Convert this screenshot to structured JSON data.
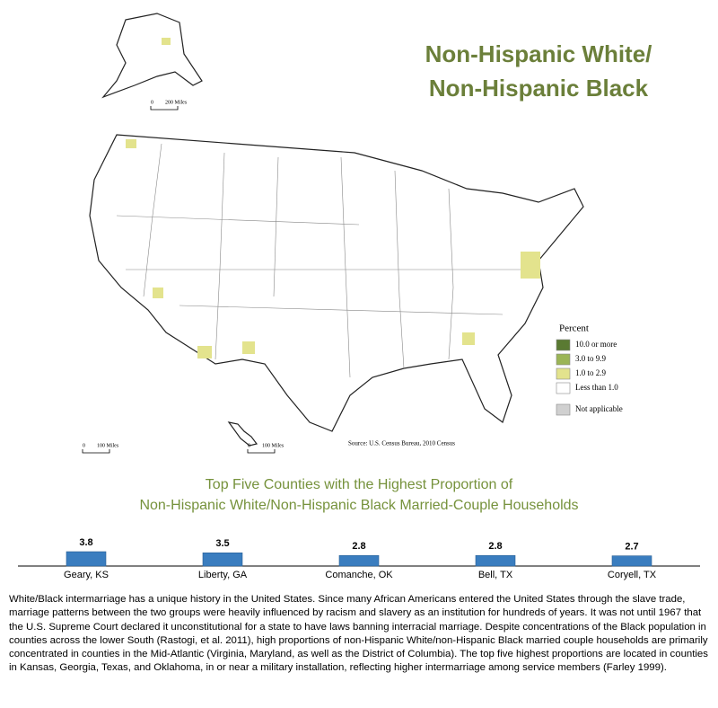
{
  "map": {
    "title": [
      "Non-Hispanic White/",
      "Non-Hispanic Black"
    ],
    "legend_title": "Percent",
    "legend": [
      {
        "label": "10.0 or more",
        "color": "#5a7a32"
      },
      {
        "label": "3.0 to 9.9",
        "color": "#9bb556"
      },
      {
        "label": "1.0 to 2.9",
        "color": "#e3e38d"
      },
      {
        "label": "Less than 1.0",
        "color": "#ffffff"
      },
      {
        "label": "Not applicable",
        "color": "#d0d0d0"
      }
    ],
    "source": "Source: U.S. Census Bureau, 2010 Census",
    "scales": [
      [
        "0",
        "200 Miles"
      ],
      [
        "0",
        "100 Miles"
      ],
      [
        "0",
        "100 Miles"
      ]
    ]
  },
  "chart_data": {
    "type": "bar",
    "title": [
      "Top Five Counties with the Highest Proportion of",
      "Non-Hispanic White/Non-Hispanic Black Married-Couple Households"
    ],
    "categories": [
      "Geary, KS",
      "Liberty, GA",
      "Comanche, OK",
      "Bell, TX",
      "Coryell, TX"
    ],
    "values": [
      3.8,
      3.5,
      2.8,
      2.8,
      2.7
    ],
    "color": "#3a7dbf"
  },
  "text": "White/Black intermarriage has a unique history in the United States. Since many African Americans entered the United States through the slave trade, marriage patterns between the two groups were heavily influenced by racism and slavery as an institution for hundreds of years. It was not until 1967 that the U.S. Supreme Court declared it unconstitutional for a state to have laws banning interracial marriage. Despite concentrations of the Black population in counties across the lower South (Rastogi, et al. 2011), high proportions of non-Hispanic White/non-Hispanic Black married couple households are primarily concentrated in counties in the Mid-Atlantic (Virginia, Maryland, as well as the District of Columbia). The top five highest proportions are located in counties in Kansas, Georgia, Texas, and Oklahoma, in or near a military installation, reflecting higher intermarriage among service members (Farley 1999)."
}
